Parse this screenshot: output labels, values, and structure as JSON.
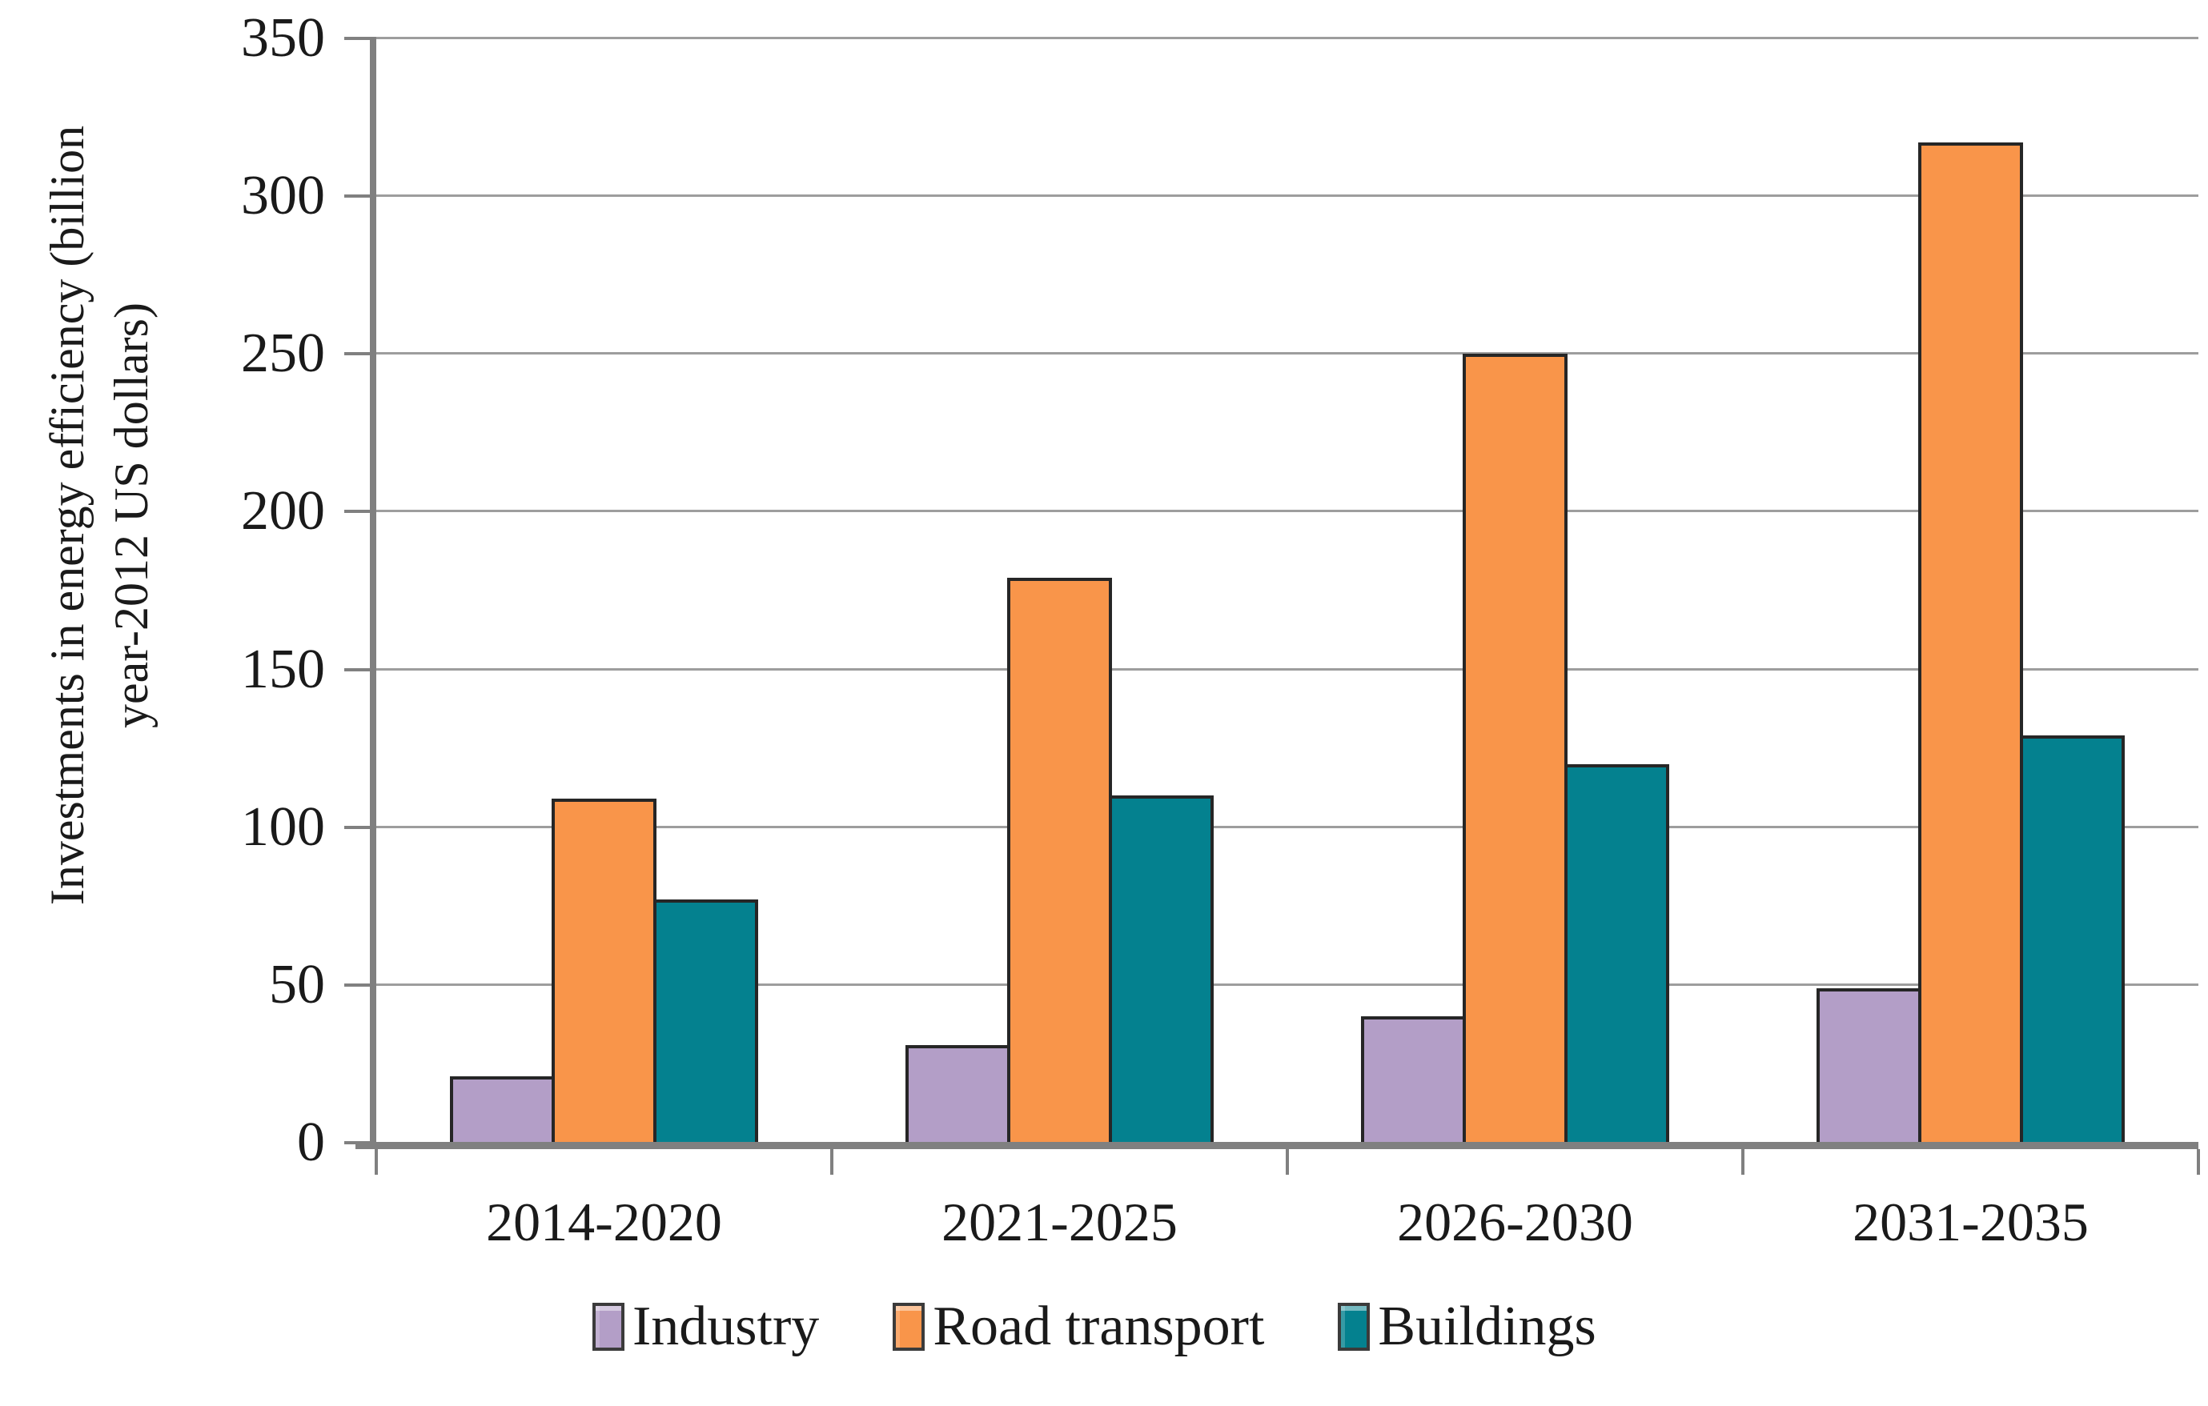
{
  "chart_data": {
    "type": "bar",
    "title": "",
    "categories": [
      "2014-2020",
      "2021-2025",
      "2026-2030",
      "2031-2035"
    ],
    "series": [
      {
        "name": "Industry",
        "color": "#b39ec7",
        "values": [
          21,
          31,
          40,
          49
        ]
      },
      {
        "name": "Road transport",
        "color": "#f9954a",
        "values": [
          109,
          179,
          250,
          317
        ]
      },
      {
        "name": "Buildings",
        "color": "#04818f",
        "values": [
          77,
          110,
          120,
          129
        ]
      }
    ],
    "ylabel": "Investments in energy efficiency (billion year-2012 US dollars)",
    "ylabel_lines": [
      "Investments in energy efficiency (billion",
      "year-2012 US dollars)"
    ],
    "xlabel": "",
    "ylim": [
      0,
      350
    ],
    "ytick_step": 50,
    "yticks": [
      0,
      50,
      100,
      150,
      200,
      250,
      300,
      350
    ],
    "grid": true,
    "legend_position": "bottom"
  },
  "style": {
    "background": "#ffffff",
    "axis_color": "#808080",
    "gridline_color": "#9d9d9d",
    "bar_border_color": "#262626",
    "text_color": "#1a1a1a",
    "industry_color": "#b39ec7",
    "road_transport_color": "#f9954a",
    "buildings_color": "#04818f"
  }
}
